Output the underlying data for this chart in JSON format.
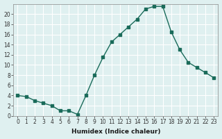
{
  "x": [
    0,
    1,
    2,
    3,
    4,
    5,
    6,
    7,
    8,
    9,
    10,
    11,
    12,
    13,
    14,
    15,
    16,
    17,
    18,
    19,
    20,
    21,
    22,
    23
  ],
  "y": [
    4,
    3.8,
    3,
    2.5,
    2,
    1,
    1,
    0.3,
    4,
    8,
    11.5,
    14.5,
    16,
    17.5,
    19,
    21,
    21.5,
    21.5,
    16.5,
    13,
    10.5,
    9.5,
    8.5,
    7.5
  ],
  "xlabel": "Humidex (Indice chaleur)",
  "ylabel": "",
  "line_color": "#1a6b5a",
  "marker_color": "#1a6b5a",
  "bg_color": "#dff0f0",
  "grid_color": "#ffffff",
  "xlim": [
    -0.5,
    23.5
  ],
  "ylim": [
    0,
    22
  ],
  "yticks": [
    0,
    2,
    4,
    6,
    8,
    10,
    12,
    14,
    16,
    18,
    20
  ],
  "xticks": [
    0,
    1,
    2,
    3,
    4,
    5,
    6,
    7,
    8,
    9,
    10,
    11,
    12,
    13,
    14,
    15,
    16,
    17,
    18,
    19,
    20,
    21,
    22,
    23
  ]
}
